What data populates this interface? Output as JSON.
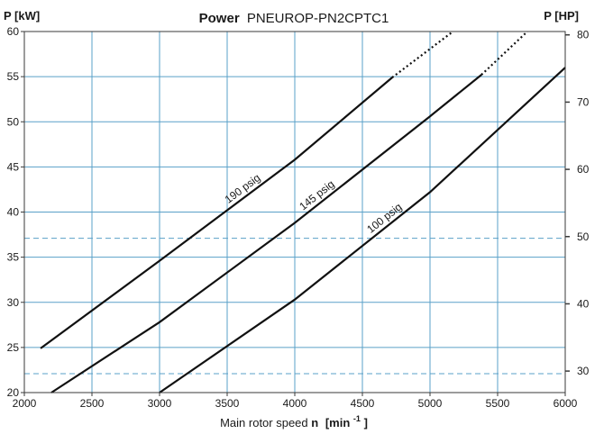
{
  "chart_data": {
    "type": "line",
    "title_bold": "Power",
    "title_rest": "PNEUROP-PN2CPTC1",
    "xlabel_prefix": "Main rotor speed ",
    "xlabel_var": "n",
    "xlabel_unit_open": "[min",
    "xlabel_unit_exp": "-1",
    "xlabel_unit_close": "]",
    "ylabel_left": "P [kW]",
    "ylabel_right": "P [HP]",
    "xlim": [
      2000,
      6000
    ],
    "ylim": [
      20,
      60
    ],
    "ylim_right": [
      26.8,
      80.5
    ],
    "x_ticks": [
      2000,
      2500,
      3000,
      3500,
      4000,
      4500,
      5000,
      5500,
      6000
    ],
    "y_ticks": [
      20,
      25,
      30,
      35,
      40,
      45,
      50,
      55,
      60
    ],
    "y_right_ticks": [
      30,
      40,
      50,
      60,
      70,
      80
    ],
    "grid": true,
    "reference_lines_kw": [
      22.1,
      37.1
    ],
    "series": [
      {
        "name": "190 psig",
        "solid": [
          [
            2120,
            24.9
          ],
          [
            3000,
            34.6
          ],
          [
            4000,
            45.8
          ],
          [
            4720,
            54.9
          ]
        ],
        "dotted": [
          [
            4720,
            54.9
          ],
          [
            5170,
            60
          ]
        ]
      },
      {
        "name": "145 psig",
        "solid": [
          [
            2200,
            20
          ],
          [
            3000,
            27.8
          ],
          [
            4000,
            38.8
          ],
          [
            5000,
            50.6
          ],
          [
            5380,
            55.2
          ]
        ],
        "dotted": [
          [
            5380,
            55.2
          ],
          [
            5720,
            60
          ]
        ]
      },
      {
        "name": "100 psig",
        "solid": [
          [
            3000,
            20
          ],
          [
            4000,
            30.3
          ],
          [
            5000,
            42.2
          ],
          [
            6000,
            56
          ]
        ],
        "dotted": []
      }
    ]
  }
}
